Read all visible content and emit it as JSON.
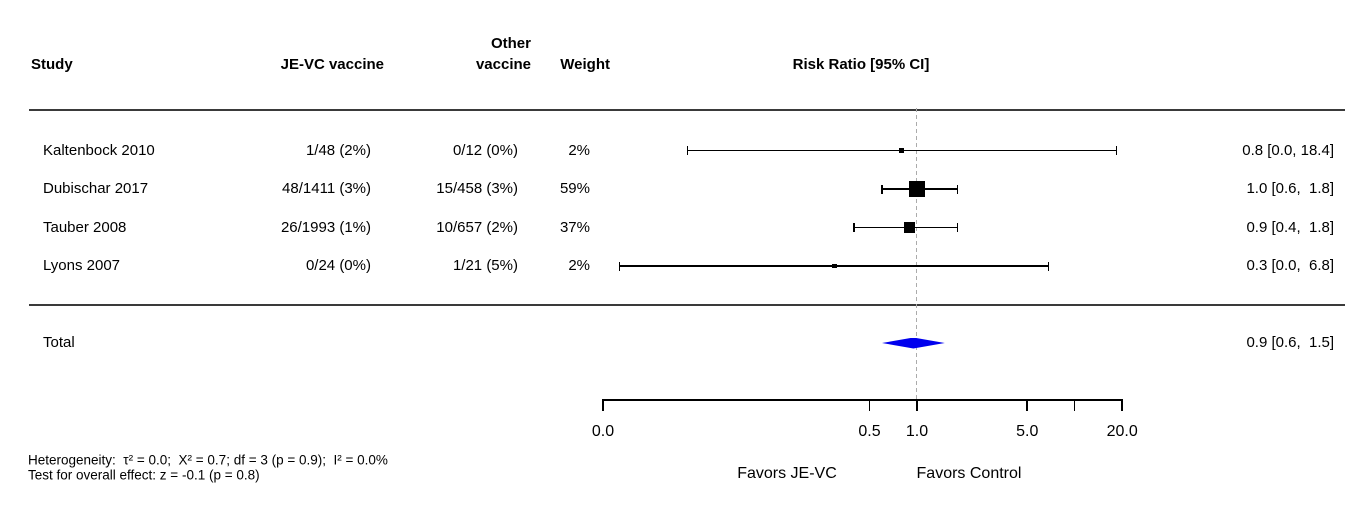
{
  "header": {
    "study": "Study",
    "jevc": "JE-VC vaccine",
    "other_line1": "Other",
    "other_line2": "vaccine",
    "weight": "Weight",
    "risk_ratio": "Risk Ratio [95% CI]"
  },
  "chart_data": {
    "type": "forest",
    "scale": "log",
    "effect_measure": "Risk Ratio",
    "axis": {
      "ticks": [
        {
          "label": "0.0",
          "value": 0
        },
        {
          "label": "0.5",
          "value": 0.5
        },
        {
          "label": "1.0",
          "value": 1.0
        },
        {
          "label": "5.0",
          "value": 5.0
        },
        {
          "label": "",
          "value": 10
        },
        {
          "label": "20.0",
          "value": 20
        }
      ],
      "reference_line": 1.0,
      "left_label": "Favors JE-VC",
      "right_label": "Favors Control"
    },
    "studies": [
      {
        "name": "Kaltenbock 2010",
        "jevc": "1/48 (2%)",
        "other": "0/12 (0%)",
        "weight": "2%",
        "weight_pct": 2,
        "rr": 0.8,
        "ci_plot_low": 0.035,
        "ci_plot_high": 18.4,
        "ci_text": "0.8 [0.0, 18.4]"
      },
      {
        "name": "Dubischar 2017",
        "jevc": "48/1411 (3%)",
        "other": "15/458 (3%)",
        "weight": "59%",
        "weight_pct": 59,
        "rr": 1.0,
        "ci_plot_low": 0.6,
        "ci_plot_high": 1.8,
        "ci_text": "1.0 [0.6,  1.8]"
      },
      {
        "name": "Tauber 2008",
        "jevc": "26/1993 (1%)",
        "other": "10/657 (2%)",
        "weight": "37%",
        "weight_pct": 37,
        "rr": 0.9,
        "ci_plot_low": 0.4,
        "ci_plot_high": 1.8,
        "ci_text": "0.9 [0.4,  1.8]"
      },
      {
        "name": "Lyons 2007",
        "jevc": "0/24 (0%)",
        "other": "1/21 (5%)",
        "weight": "2%",
        "weight_pct": 2,
        "rr": 0.3,
        "ci_plot_low": 0.013,
        "ci_plot_high": 6.8,
        "ci_text": "0.3 [0.0,  6.8]"
      }
    ],
    "total": {
      "name": "Total",
      "rr": 0.9,
      "ci_plot_low": 0.6,
      "ci_plot_high": 1.5,
      "ci_text": "0.9 [0.6,  1.5]",
      "diamond_color": "#0000EE"
    }
  },
  "footnotes": {
    "heterogeneity": "Heterogeneity:  τ² = 0.0;  Χ² = 0.7; df = 3 (p = 0.9);  I² = 0.0%",
    "overall_effect": "Test for overall effect: z = -0.1 (p = 0.8)"
  }
}
